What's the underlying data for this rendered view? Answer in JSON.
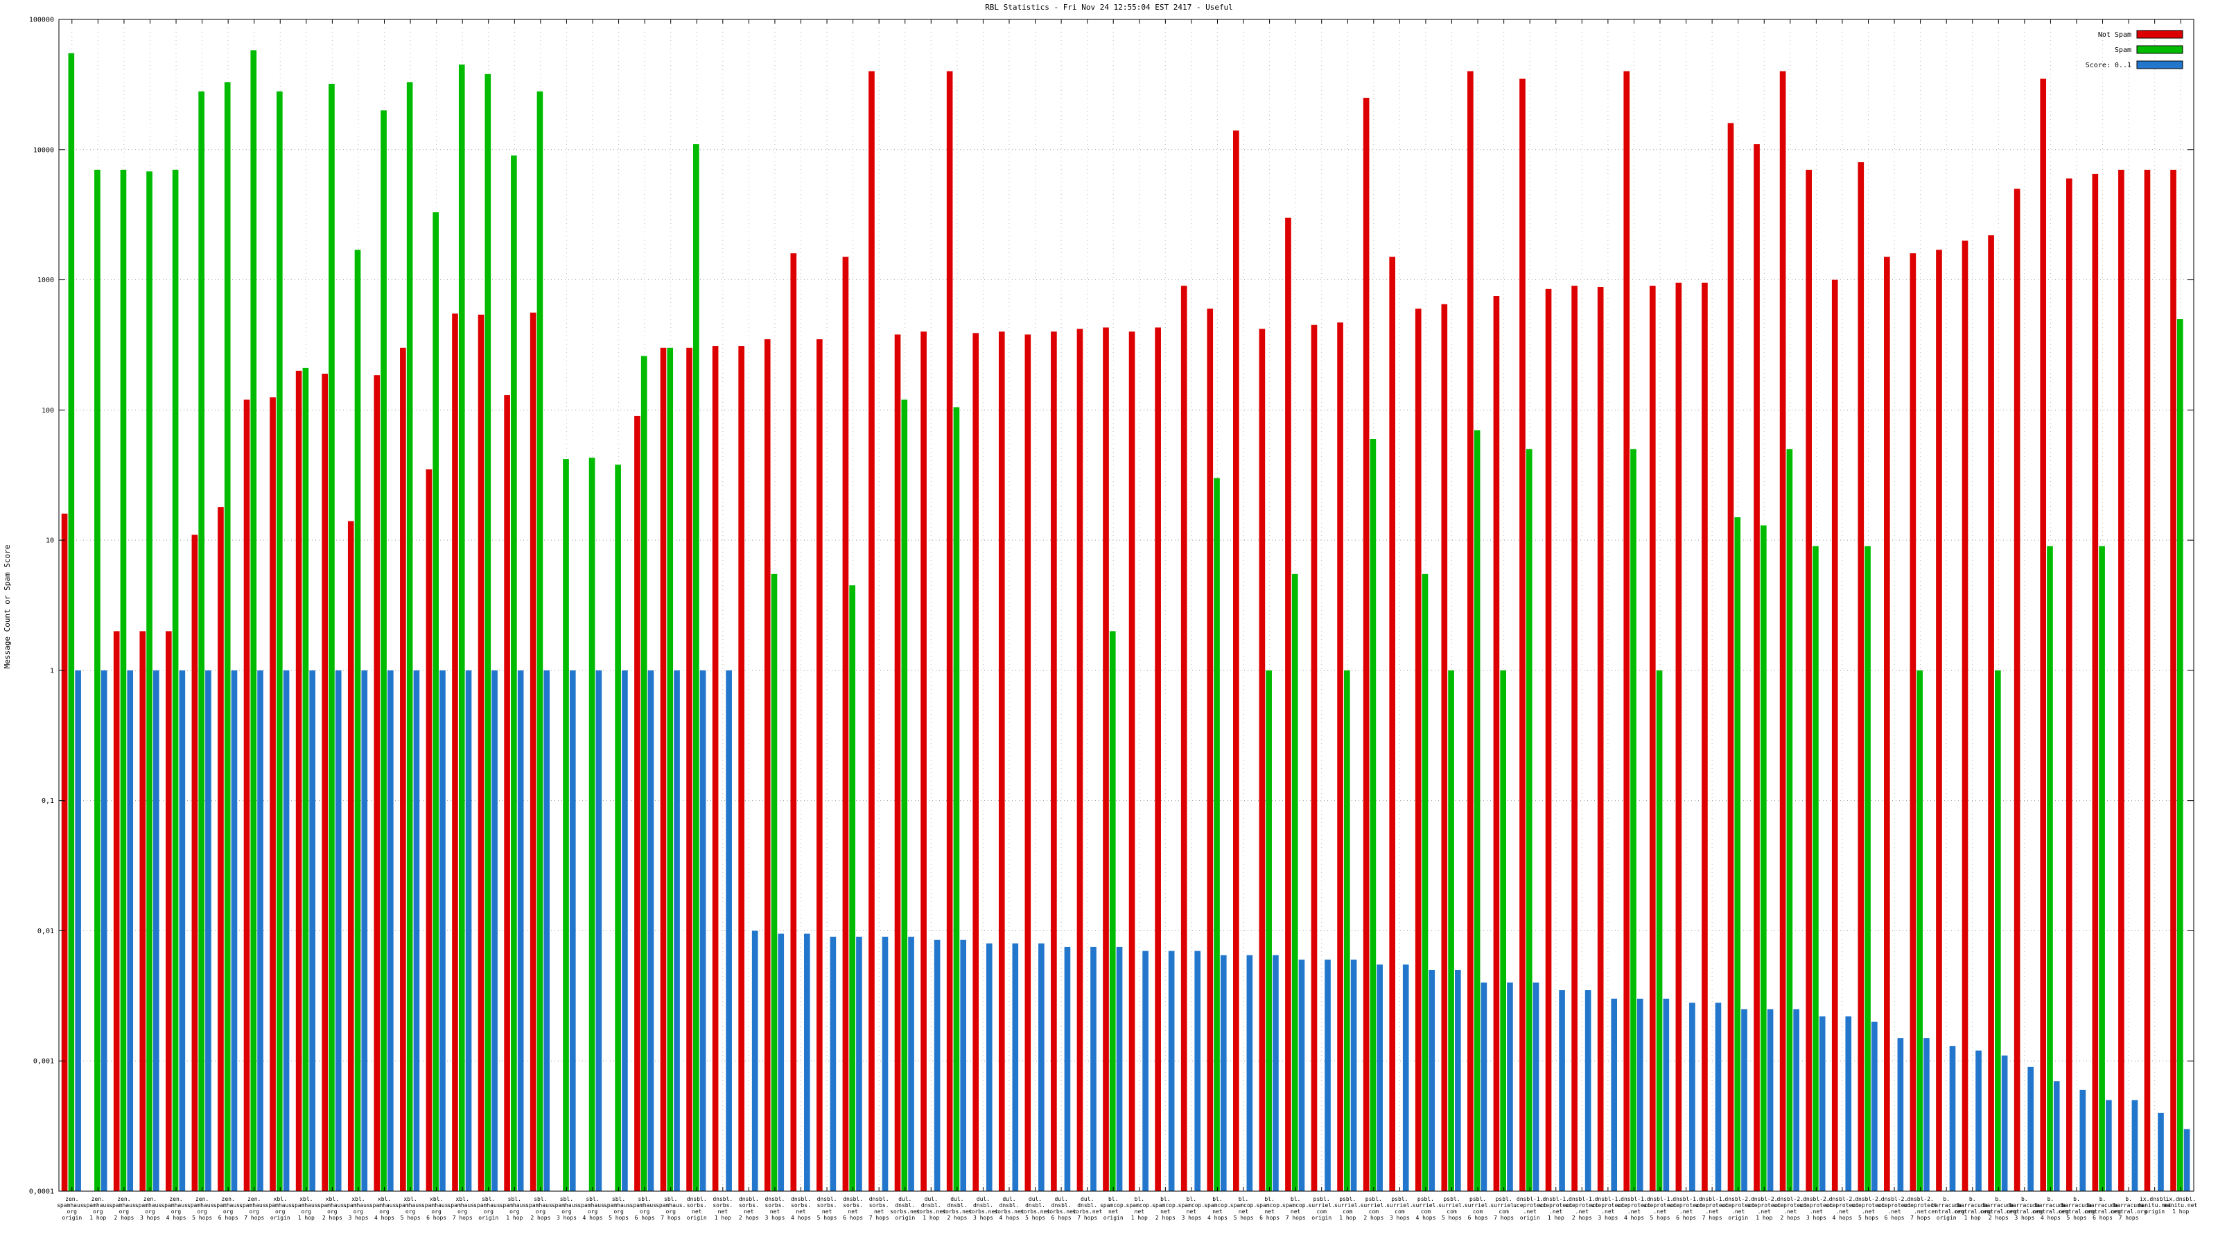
{
  "chart_data": {
    "type": "bar",
    "title": "RBL Statistics - Fri Nov 24 12:55:04 EST 2417 - Useful",
    "xlabel": "",
    "ylabel": "Message Count or Spam Score",
    "log_scale_y": true,
    "ylim": [
      0.0001,
      100000
    ],
    "y_ticks": [
      "100000",
      "10000",
      "1000",
      "100",
      "10",
      "1",
      "0,1",
      "0,01",
      "0,001",
      "0,0001"
    ],
    "grid": true,
    "legend_position": "top-right",
    "legend": [
      {
        "name": "Not Spam",
        "color": "#dd0000"
      },
      {
        "name": "Spam",
        "color": "#00bb00"
      },
      {
        "name": "Score: 0..1",
        "color": "#2277cc"
      }
    ],
    "categories": [
      "zen.|spamhaus.|org|origin",
      "zen.|spamhaus.|org|1 hop",
      "zen.|spamhaus.|org|2 hops",
      "zen.|spamhaus.|org|3 hops",
      "zen.|spamhaus.|org|4 hops",
      "zen.|spamhaus.|org|5 hops",
      "zen.|spamhaus.|org|6 hops",
      "zen.|spamhaus.|org|7 hops",
      "xbl.|spamhaus.|org|origin",
      "xbl.|spamhaus.|org|1 hop",
      "xbl.|spamhaus.|org|2 hops",
      "xbl.|spamhaus.|org|3 hops",
      "xbl.|spamhaus.|org|4 hops",
      "xbl.|spamhaus.|org|5 hops",
      "xbl.|spamhaus.|org|6 hops",
      "xbl.|spamhaus.|org|7 hops",
      "sbl.|spamhaus.|org|origin",
      "sbl.|spamhaus.|org|1 hop",
      "sbl.|spamhaus.|org|2 hops",
      "sbl.|spamhaus.|org|3 hops",
      "sbl.|spamhaus.|org|4 hops",
      "sbl.|spamhaus.|org|5 hops",
      "sbl.|spamhaus.|org|6 hops",
      "sbl.|spamhaus.|org|7 hops",
      "dnsbl.|sorbs.|net|origin",
      "dnsbl.|sorbs.|net|1 hop",
      "dnsbl.|sorbs.|net|2 hops",
      "dnsbl.|sorbs.|net|3 hops",
      "dnsbl.|sorbs.|net|4 hops",
      "dnsbl.|sorbs.|net|5 hops",
      "dnsbl.|sorbs.|net|6 hops",
      "dnsbl.|sorbs.|net|7 hops",
      "dul.|dnsbl.|sorbs.net|origin",
      "dul.|dnsbl.|sorbs.net|1 hop",
      "dul.|dnsbl.|sorbs.net|2 hops",
      "dul.|dnsbl.|sorbs.net|3 hops",
      "dul.|dnsbl.|sorbs.net|4 hops",
      "dul.|dnsbl.|sorbs.net|5 hops",
      "dul.|dnsbl.|sorbs.net|6 hops",
      "dul.|dnsbl.|sorbs.net|7 hops",
      "bl.|spamcop.|net|origin",
      "bl.|spamcop.|net|1 hop",
      "bl.|spamcop.|net|2 hops",
      "bl.|spamcop.|net|3 hops",
      "bl.|spamcop.|net|4 hops",
      "bl.|spamcop.|net|5 hops",
      "bl.|spamcop.|net|6 hops",
      "bl.|spamcop.|net|7 hops",
      "psbl.|surriel.|com|origin",
      "psbl.|surriel.|com|1 hop",
      "psbl.|surriel.|com|2 hops",
      "psbl.|surriel.|com|3 hops",
      "psbl.|surriel.|com|4 hops",
      "psbl.|surriel.|com|5 hops",
      "psbl.|surriel.|com|6 hops",
      "psbl.|surriel.|com|7 hops",
      "dnsbl-1.|uceprotect|.net|origin",
      "dnsbl-1.|uceprotect|.net|1 hop",
      "dnsbl-1.|uceprotect|.net|2 hops",
      "dnsbl-1.|uceprotect|.net|3 hops",
      "dnsbl-1.|uceprotect|.net|4 hops",
      "dnsbl-1.|uceprotect|.net|5 hops",
      "dnsbl-1.|uceprotect|.net|6 hops",
      "dnsbl-1.|uceprotect|.net|7 hops",
      "dnsbl-2.|uceprotect|.net|origin",
      "dnsbl-2.|uceprotect|.net|1 hop",
      "dnsbl-2.|uceprotect|.net|2 hops",
      "dnsbl-2.|uceprotect|.net|3 hops",
      "dnsbl-2.|uceprotect|.net|4 hops",
      "dnsbl-2.|uceprotect|.net|5 hops",
      "dnsbl-2.|uceprotect|.net|6 hops",
      "dnsbl-2.|uceprotect|.net|7 hops",
      "b.|barracuda|central.org|origin",
      "b.|barracuda|central.org|1 hop",
      "b.|barracuda|central.org|2 hops",
      "b.|barracuda|central.org|3 hops",
      "b.|barracuda|central.org|4 hops",
      "b.|barracuda|central.org|5 hops",
      "b.|barracuda|central.org|6 hops",
      "b.|barracuda|central.org|7 hops",
      "ix.dnsbl.|manitu.net|origin",
      "ix.dnsbl.|manitu.net|1 hop"
    ],
    "series": [
      {
        "name": "Not Spam",
        "color": "#dd0000",
        "values": [
          16,
          0,
          2,
          2,
          2,
          11,
          18,
          120,
          125,
          200,
          190,
          14,
          185,
          300,
          35,
          550,
          540,
          130,
          560,
          0,
          0,
          0,
          90,
          300,
          300,
          310,
          310,
          350,
          1600,
          350,
          1500,
          40000,
          380,
          400,
          40000,
          390,
          400,
          380,
          400,
          420,
          430,
          400,
          430,
          900,
          600,
          14000,
          420,
          3000,
          450,
          470,
          25000,
          1500,
          600,
          650,
          40000,
          750,
          35000,
          850,
          900,
          880,
          40000,
          900,
          950,
          950,
          16000,
          11000,
          40000,
          7000,
          1000,
          8000,
          1500,
          1600,
          1700,
          2000,
          2200,
          5000,
          35000,
          6000,
          6500,
          7000,
          7000,
          7000
        ]
      },
      {
        "name": "Spam",
        "color": "#00bb00",
        "values": [
          55000,
          7000,
          7000,
          6800,
          7000,
          28000,
          33000,
          58000,
          28000,
          210,
          32000,
          1700,
          20000,
          33000,
          3300,
          45000,
          38000,
          9000,
          28000,
          42,
          43,
          38,
          260,
          300,
          11000,
          0,
          0,
          5.5,
          0,
          0,
          4.5,
          0,
          120,
          0,
          105,
          0,
          0,
          0,
          0,
          0,
          2,
          0,
          0,
          0,
          30,
          0,
          1,
          5.5,
          0,
          1,
          60,
          0,
          5.5,
          1,
          70,
          1,
          50,
          0,
          0,
          0,
          50,
          1,
          0,
          0,
          15,
          13,
          50,
          9,
          0,
          9,
          0,
          1,
          0,
          0,
          1,
          0,
          9,
          0,
          9,
          0,
          0,
          500
        ]
      },
      {
        "name": "Score: 0..1",
        "color": "#2277cc",
        "values": [
          1,
          1,
          1,
          1,
          1,
          1,
          1,
          1,
          1,
          1,
          1,
          1,
          1,
          1,
          1,
          1,
          1,
          1,
          1,
          1,
          1,
          1,
          1,
          1,
          1,
          1,
          0.01,
          0.0095,
          0.0095,
          0.009,
          0.009,
          0.009,
          0.009,
          0.0085,
          0.0085,
          0.008,
          0.008,
          0.008,
          0.0075,
          0.0075,
          0.0075,
          0.007,
          0.007,
          0.007,
          0.0065,
          0.0065,
          0.0065,
          0.006,
          0.006,
          0.006,
          0.0055,
          0.0055,
          0.005,
          0.005,
          0.004,
          0.004,
          0.004,
          0.0035,
          0.0035,
          0.003,
          0.003,
          0.003,
          0.0028,
          0.0028,
          0.0025,
          0.0025,
          0.0025,
          0.0022,
          0.0022,
          0.002,
          0.0015,
          0.0015,
          0.0013,
          0.0012,
          0.0011,
          0.0009,
          0.0007,
          0.0006,
          0.0005,
          0.0005,
          0.0004,
          0.0003
        ]
      }
    ]
  }
}
